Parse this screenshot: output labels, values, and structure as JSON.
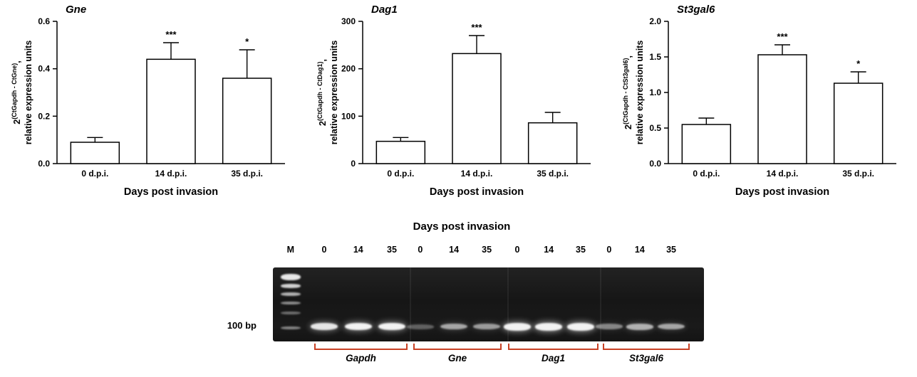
{
  "chart_data": [
    {
      "type": "bar",
      "title": "Gne",
      "categories": [
        "0 d.p.i.",
        "14 d.p.i.",
        "35 d.p.i."
      ],
      "values": [
        0.09,
        0.44,
        0.36
      ],
      "error_top": [
        0.11,
        0.51,
        0.48
      ],
      "significance": [
        "",
        "***",
        "*"
      ],
      "xlabel": "Days post invasion",
      "ylabel_base": "2",
      "ylabel_exp": "(CtGapdh - CtGne)",
      "ylabel_comma": ",",
      "ylabel_line2": "relative expression units",
      "ylim": [
        0,
        0.6
      ],
      "yticks": [
        0,
        0.2,
        0.4,
        0.6
      ],
      "ytick_labels": [
        "0.0",
        "0.2",
        "0.4",
        "0.6"
      ],
      "grid": false,
      "legend": "none"
    },
    {
      "type": "bar",
      "title": "Dag1",
      "categories": [
        "0 d.p.i.",
        "14 d.p.i.",
        "35 d.p.i."
      ],
      "values": [
        47,
        232,
        86
      ],
      "error_top": [
        55,
        270,
        108
      ],
      "significance": [
        "",
        "***",
        ""
      ],
      "xlabel": "Days post invasion",
      "ylabel_base": "2",
      "ylabel_exp": "(CtGapdh - CtDag1)",
      "ylabel_comma": ",",
      "ylabel_line2": "relative expression units",
      "ylim": [
        0,
        300
      ],
      "yticks": [
        0,
        100,
        200,
        300
      ],
      "ytick_labels": [
        "0",
        "100",
        "200",
        "300"
      ],
      "grid": false,
      "legend": "none"
    },
    {
      "type": "bar",
      "title": "St3gal6",
      "categories": [
        "0 d.p.i.",
        "14 d.p.i.",
        "35 d.p.i."
      ],
      "values": [
        0.55,
        1.53,
        1.13
      ],
      "error_top": [
        0.64,
        1.67,
        1.29
      ],
      "significance": [
        "",
        "***",
        "*"
      ],
      "xlabel": "Days post invasion",
      "ylabel_base": "2",
      "ylabel_exp": "(CtGapdh - CtSt3gal6)",
      "ylabel_comma": ",",
      "ylabel_line2": "relative expression units",
      "ylim": [
        0,
        2.0
      ],
      "yticks": [
        0,
        0.5,
        1.0,
        1.5,
        2.0
      ],
      "ytick_labels": [
        "0.0",
        "0.5",
        "1.0",
        "1.5",
        "2.0"
      ],
      "grid": false,
      "legend": "none"
    }
  ],
  "gel": {
    "title": "Days post invasion",
    "lane_labels": [
      "M",
      "0",
      "14",
      "35",
      "0",
      "14",
      "35",
      "0",
      "14",
      "35",
      "0",
      "14",
      "35"
    ],
    "size_label": "100 bp",
    "groups": [
      "Gapdh",
      "Gne",
      "Dag1",
      "St3gal6"
    ],
    "band_intensities": [
      0.8,
      0.85,
      0.9,
      0.18,
      0.5,
      0.45,
      0.95,
      1.0,
      1.0,
      0.35,
      0.55,
      0.5
    ],
    "bracket_color": "#c84125"
  }
}
